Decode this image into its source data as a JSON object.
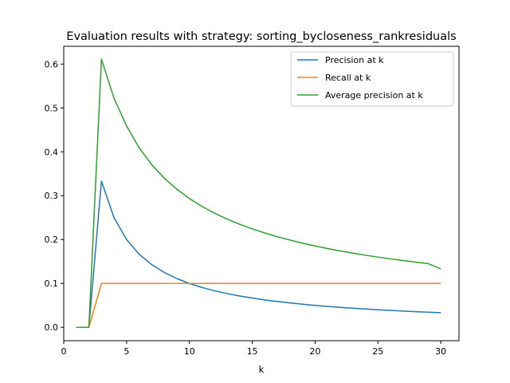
{
  "chart_data": {
    "type": "line",
    "title": "Evaluation results with strategy: sorting_bycloseness_rankresiduals",
    "xlabel": "k",
    "ylabel": "",
    "xlim": [
      0.0,
      31.45
    ],
    "ylim": [
      -0.0305,
      0.6405
    ],
    "xticks": [
      0,
      5,
      10,
      15,
      20,
      25,
      30
    ],
    "yticks": [
      0.0,
      0.1,
      0.2,
      0.3,
      0.4,
      0.5,
      0.6
    ],
    "xtick_labels": [
      "0",
      "5",
      "10",
      "15",
      "20",
      "25",
      "30"
    ],
    "ytick_labels": [
      "0.0",
      "0.1",
      "0.2",
      "0.3",
      "0.4",
      "0.5",
      "0.6"
    ],
    "grid": false,
    "legend_position": "top-right",
    "x": [
      1,
      2,
      3,
      4,
      5,
      6,
      7,
      8,
      9,
      10,
      11,
      12,
      13,
      14,
      15,
      16,
      17,
      18,
      19,
      20,
      21,
      22,
      23,
      24,
      25,
      26,
      27,
      28,
      29,
      30
    ],
    "series": [
      {
        "name": "Precision at k",
        "color": "#1f77b4",
        "values": [
          0,
          0,
          0.3333,
          0.25,
          0.2,
          0.1667,
          0.1429,
          0.125,
          0.1111,
          0.1,
          0.0909,
          0.0833,
          0.0769,
          0.0714,
          0.0667,
          0.0625,
          0.0588,
          0.0556,
          0.0526,
          0.05,
          0.0476,
          0.0455,
          0.0435,
          0.0417,
          0.04,
          0.0385,
          0.037,
          0.0357,
          0.0345,
          0.0333
        ]
      },
      {
        "name": "Recall at k",
        "color": "#ff7f0e",
        "values": [
          0,
          0,
          0.1,
          0.1,
          0.1,
          0.1,
          0.1,
          0.1,
          0.1,
          0.1,
          0.1,
          0.1,
          0.1,
          0.1,
          0.1,
          0.1,
          0.1,
          0.1,
          0.1,
          0.1,
          0.1,
          0.1,
          0.1,
          0.1,
          0.1,
          0.1,
          0.1,
          0.1,
          0.1,
          0.1
        ]
      },
      {
        "name": "Average precision at k",
        "color": "#2ca02c",
        "values": [
          0,
          0,
          0.6111,
          0.5221,
          0.4589,
          0.4092,
          0.3707,
          0.3399,
          0.3146,
          0.2935,
          0.2756,
          0.2602,
          0.2468,
          0.2349,
          0.2244,
          0.215,
          0.2065,
          0.1988,
          0.1918,
          0.1854,
          0.1796,
          0.1741,
          0.1691,
          0.1644,
          0.1601,
          0.156,
          0.1522,
          0.1486,
          0.1452,
          0.1332
        ]
      }
    ]
  }
}
